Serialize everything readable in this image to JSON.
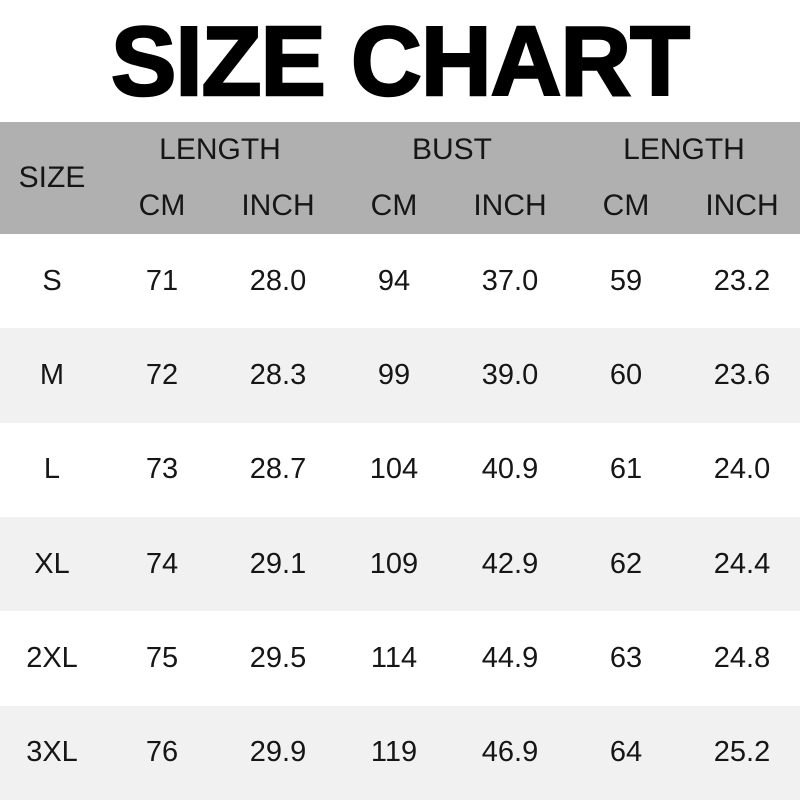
{
  "page": {
    "title": "SIZE CHART"
  },
  "colors": {
    "header_bg": "#b0b0b0",
    "row_bg": "#ffffff",
    "row_alt_bg": "#f1f1f1",
    "text": "#161616",
    "title_color": "#000000"
  },
  "table": {
    "size_header": "SIZE",
    "group_headers": [
      "LENGTH",
      "BUST",
      "LENGTH"
    ],
    "unit_headers": [
      "CM",
      "INCH",
      "CM",
      "INCH",
      "CM",
      "INCH"
    ],
    "rows": [
      {
        "size": "S",
        "values": [
          "71",
          "28.0",
          "94",
          "37.0",
          "59",
          "23.2"
        ]
      },
      {
        "size": "M",
        "values": [
          "72",
          "28.3",
          "99",
          "39.0",
          "60",
          "23.6"
        ]
      },
      {
        "size": "L",
        "values": [
          "73",
          "28.7",
          "104",
          "40.9",
          "61",
          "24.0"
        ]
      },
      {
        "size": "XL",
        "values": [
          "74",
          "29.1",
          "109",
          "42.9",
          "62",
          "24.4"
        ]
      },
      {
        "size": "2XL",
        "values": [
          "75",
          "29.5",
          "114",
          "44.9",
          "63",
          "24.8"
        ]
      },
      {
        "size": "3XL",
        "values": [
          "76",
          "29.9",
          "119",
          "46.9",
          "64",
          "25.2"
        ]
      }
    ]
  }
}
